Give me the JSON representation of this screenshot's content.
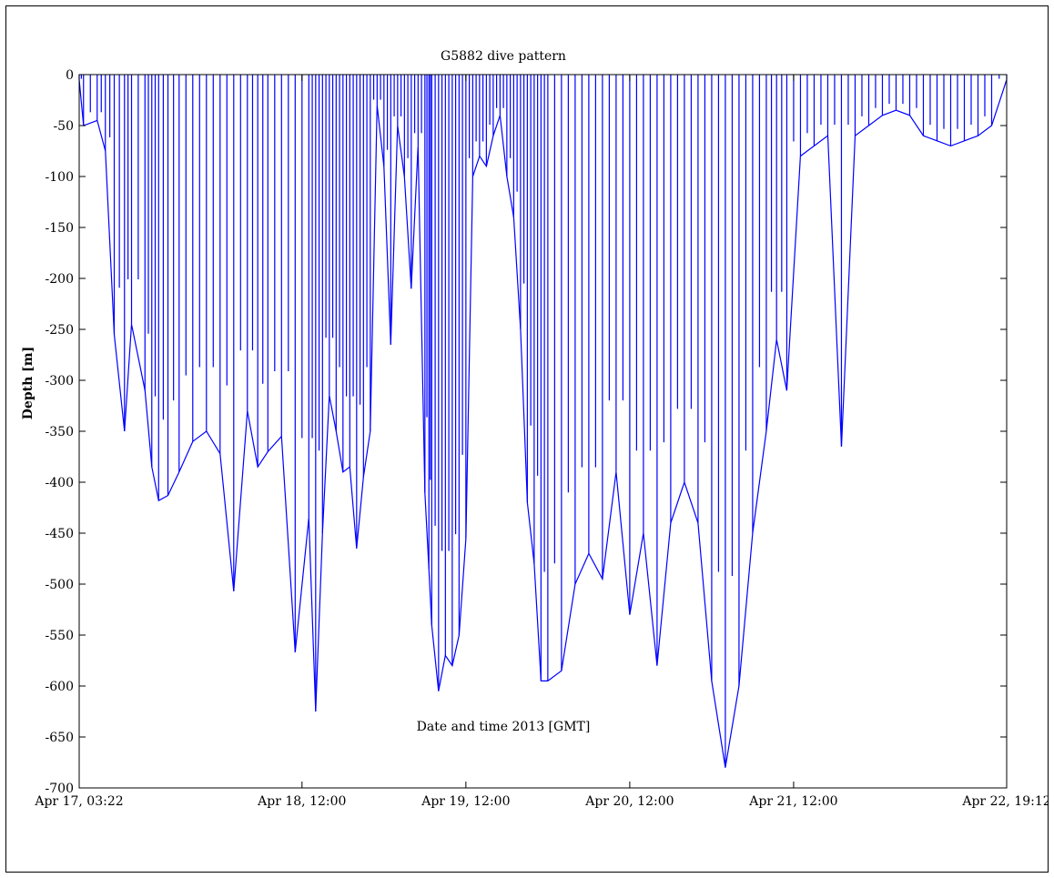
{
  "chart_data": {
    "type": "line",
    "title": "G5882 dive pattern",
    "xlabel": "Date and time 2013 [GMT]",
    "ylabel": "Depth [m]",
    "x_unit": "datetime GMT",
    "xlim": [
      "2013-04-17 03:22",
      "2013-04-22 19:12"
    ],
    "ylim": [
      -700,
      0
    ],
    "yticks": [
      0,
      -50,
      -100,
      -150,
      -200,
      -250,
      -300,
      -350,
      -400,
      -450,
      -500,
      -550,
      -600,
      -650,
      -700
    ],
    "xticks": [
      {
        "t": "2013-04-17 03:22",
        "label": "Apr 17, 03:22"
      },
      {
        "t": "2013-04-18 12:00",
        "label": "Apr 18, 12:00"
      },
      {
        "t": "2013-04-19 12:00",
        "label": "Apr 19, 12:00"
      },
      {
        "t": "2013-04-20 12:00",
        "label": "Apr 20, 12:00"
      },
      {
        "t": "2013-04-21 12:00",
        "label": "Apr 21, 12:00"
      },
      {
        "t": "2013-04-22 19:12",
        "label": "Apr 22, 19:12"
      }
    ],
    "grid": false,
    "series": [
      {
        "color": "#0000ff",
        "x": [
          "2013-04-17 03:22",
          "2013-04-17 04:00",
          "2013-04-17 06:00",
          "2013-04-17 07:12",
          "2013-04-17 08:30",
          "2013-04-17 10:00",
          "2013-04-17 11:02",
          "2013-04-17 13:00",
          "2013-04-17 14:00",
          "2013-04-17 15:00",
          "2013-04-17 16:22",
          "2013-04-17 18:00",
          "2013-04-17 20:00",
          "2013-04-17 22:00",
          "2013-04-18 00:00",
          "2013-04-18 02:00",
          "2013-04-18 04:00",
          "2013-04-18 05:31",
          "2013-04-18 07:00",
          "2013-04-18 09:00",
          "2013-04-18 11:00",
          "2013-04-18 13:00",
          "2013-04-18 14:00",
          "2013-04-18 15:00",
          "2013-04-18 16:00",
          "2013-04-18 17:00",
          "2013-04-18 18:00",
          "2013-04-18 19:00",
          "2013-04-18 20:00",
          "2013-04-18 21:00",
          "2013-04-18 22:00",
          "2013-04-18 23:00",
          "2013-04-19 00:00",
          "2013-04-19 01:00",
          "2013-04-19 02:00",
          "2013-04-19 03:00",
          "2013-04-19 04:00",
          "2013-04-19 05:00",
          "2013-04-19 06:00",
          "2013-04-19 06:35",
          "2013-04-19 07:00",
          "2013-04-19 08:00",
          "2013-04-19 09:00",
          "2013-04-19 10:00",
          "2013-04-19 11:00",
          "2013-04-19 12:00",
          "2013-04-19 13:00",
          "2013-04-19 14:00",
          "2013-04-19 15:00",
          "2013-04-19 16:00",
          "2013-04-19 17:00",
          "2013-04-19 18:00",
          "2013-04-19 19:00",
          "2013-04-19 20:00",
          "2013-04-19 21:00",
          "2013-04-19 22:00",
          "2013-04-19 23:00",
          "2013-04-20 00:00",
          "2013-04-20 02:00",
          "2013-04-20 04:00",
          "2013-04-20 06:00",
          "2013-04-20 08:00",
          "2013-04-20 10:00",
          "2013-04-20 12:00",
          "2013-04-20 14:00",
          "2013-04-20 16:00",
          "2013-04-20 18:00",
          "2013-04-20 20:00",
          "2013-04-20 22:00",
          "2013-04-21 00:00",
          "2013-04-21 02:00",
          "2013-04-21 04:00",
          "2013-04-21 06:00",
          "2013-04-21 08:00",
          "2013-04-21 09:30",
          "2013-04-21 11:00",
          "2013-04-21 13:00",
          "2013-04-21 15:00",
          "2013-04-21 17:00",
          "2013-04-21 19:00",
          "2013-04-21 21:00",
          "2013-04-21 23:00",
          "2013-04-22 01:00",
          "2013-04-22 03:00",
          "2013-04-22 05:00",
          "2013-04-22 07:00",
          "2013-04-22 09:00",
          "2013-04-22 11:00",
          "2013-04-22 13:00",
          "2013-04-22 15:00",
          "2013-04-22 17:00",
          "2013-04-22 19:12"
        ],
        "y": [
          -5,
          -50,
          -45,
          -75,
          -255,
          -350,
          -245,
          -310,
          -385,
          -418,
          -413,
          -390,
          -360,
          -350,
          -372,
          -507,
          -330,
          -385,
          -370,
          -355,
          -567,
          -435,
          -625,
          -450,
          -315,
          -350,
          -390,
          -385,
          -465,
          -395,
          -350,
          -30,
          -90,
          -265,
          -50,
          -100,
          -210,
          -70,
          -410,
          -485,
          -540,
          -605,
          -570,
          -580,
          -550,
          -455,
          -100,
          -80,
          -90,
          -60,
          -40,
          -100,
          -140,
          -250,
          -420,
          -480,
          -595,
          -595,
          -585,
          -500,
          -470,
          -495,
          -390,
          -530,
          -450,
          -580,
          -440,
          -400,
          -440,
          -595,
          -680,
          -600,
          -450,
          -350,
          -260,
          -310,
          -80,
          -70,
          -60,
          -365,
          -60,
          -50,
          -40,
          -35,
          -40,
          -60,
          -65,
          -70,
          -65,
          -60,
          -50,
          -5
        ]
      }
    ]
  }
}
